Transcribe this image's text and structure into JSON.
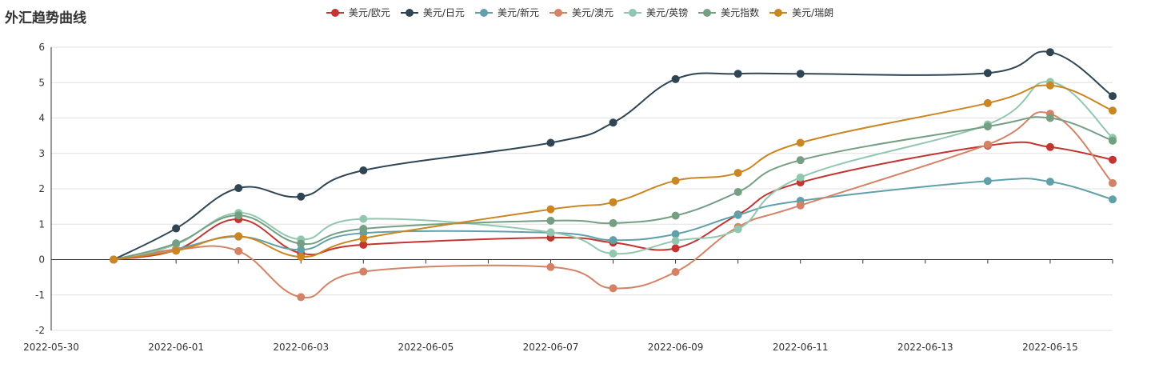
{
  "chart_data": {
    "type": "line",
    "title": "外汇趋势曲线",
    "xlabel": "",
    "ylabel": "",
    "ylim": [
      -2,
      6
    ],
    "xlim": [
      "2022-05-30",
      "2022-06-16"
    ],
    "yticks": [
      "-2",
      "-1",
      "0",
      "1",
      "2",
      "3",
      "4",
      "5",
      "6"
    ],
    "xticks": [
      "2022-05-30",
      "2022-06-01",
      "2022-06-03",
      "2022-06-05",
      "2022-06-07",
      "2022-06-09",
      "2022-06-11",
      "2022-06-13",
      "2022-06-15"
    ],
    "grid": true,
    "smooth": true,
    "legend_position": "top-center",
    "x": [
      "2022-05-31",
      "2022-06-01",
      "2022-06-02",
      "2022-06-03",
      "2022-06-04",
      "2022-06-07",
      "2022-06-08",
      "2022-06-09",
      "2022-06-10",
      "2022-06-11",
      "2022-06-14",
      "2022-06-15",
      "2022-06-16"
    ],
    "series": [
      {
        "name": "美元/欧元",
        "color": "#c23531",
        "values": [
          0,
          0.27,
          1.14,
          0.18,
          0.42,
          0.62,
          0.48,
          0.32,
          1.27,
          2.18,
          3.22,
          3.18,
          2.82
        ]
      },
      {
        "name": "美元/日元",
        "color": "#2f4554",
        "values": [
          0,
          0.88,
          2.02,
          1.78,
          2.52,
          3.3,
          3.87,
          5.1,
          5.25,
          5.25,
          5.27,
          5.86,
          4.62
        ]
      },
      {
        "name": "美元/新元",
        "color": "#61a0a8",
        "values": [
          0,
          0.3,
          0.65,
          0.28,
          0.75,
          0.76,
          0.55,
          0.72,
          1.26,
          1.66,
          2.22,
          2.2,
          1.7
        ]
      },
      {
        "name": "美元/澳元",
        "color": "#d48265",
        "values": [
          0,
          0.28,
          0.24,
          -1.06,
          -0.34,
          -0.21,
          -0.81,
          -0.35,
          0.92,
          1.53,
          3.25,
          4.12,
          2.16
        ]
      },
      {
        "name": "美元/英镑",
        "color": "#91c7ae",
        "values": [
          0,
          0.43,
          1.32,
          0.57,
          1.15,
          0.77,
          0.17,
          0.53,
          0.86,
          2.32,
          3.82,
          5.02,
          3.44
        ]
      },
      {
        "name": "美元指数",
        "color": "#749f83",
        "values": [
          0,
          0.46,
          1.25,
          0.45,
          0.87,
          1.1,
          1.03,
          1.24,
          1.91,
          2.81,
          3.76,
          4.0,
          3.36
        ]
      },
      {
        "name": "美元/瑞朗",
        "color": "#ca8622",
        "values": [
          0,
          0.25,
          0.66,
          0.08,
          0.6,
          1.42,
          1.62,
          2.23,
          2.45,
          3.3,
          4.42,
          4.92,
          4.21
        ]
      }
    ]
  }
}
